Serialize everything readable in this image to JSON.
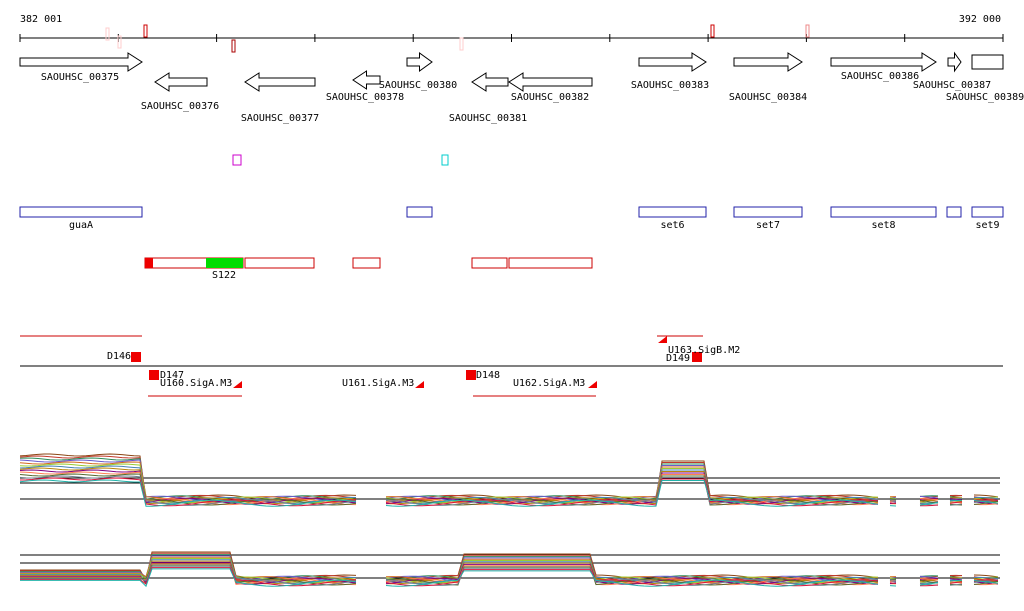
{
  "ruler": {
    "start": "382 001",
    "end": "392 000"
  },
  "genes": [
    {
      "label": "SAOUHSC_00375"
    },
    {
      "label": "SAOUHSC_00376"
    },
    {
      "label": "SAOUHSC_00377"
    },
    {
      "label": "SAOUHSC_00378"
    },
    {
      "label": "SAOUHSC_00380"
    },
    {
      "label": "SAOUHSC_00381"
    },
    {
      "label": "SAOUHSC_00382"
    },
    {
      "label": "SAOUHSC_00383"
    },
    {
      "label": "SAOUHSC_00384"
    },
    {
      "label": "SAOUHSC_00386"
    },
    {
      "label": "SAOUHSC_00387"
    },
    {
      "label": "SAOUHSC_00389"
    }
  ],
  "features": [
    "guaA",
    "set6",
    "set7",
    "set8",
    "set9"
  ],
  "regions": [
    "S122"
  ],
  "annotations": [
    "D146",
    "D147",
    "U160.SigA.M3",
    "U161.SigA.M3",
    "D148",
    "U162.SigA.M3",
    "U163.SigB.M2",
    "D149"
  ]
}
